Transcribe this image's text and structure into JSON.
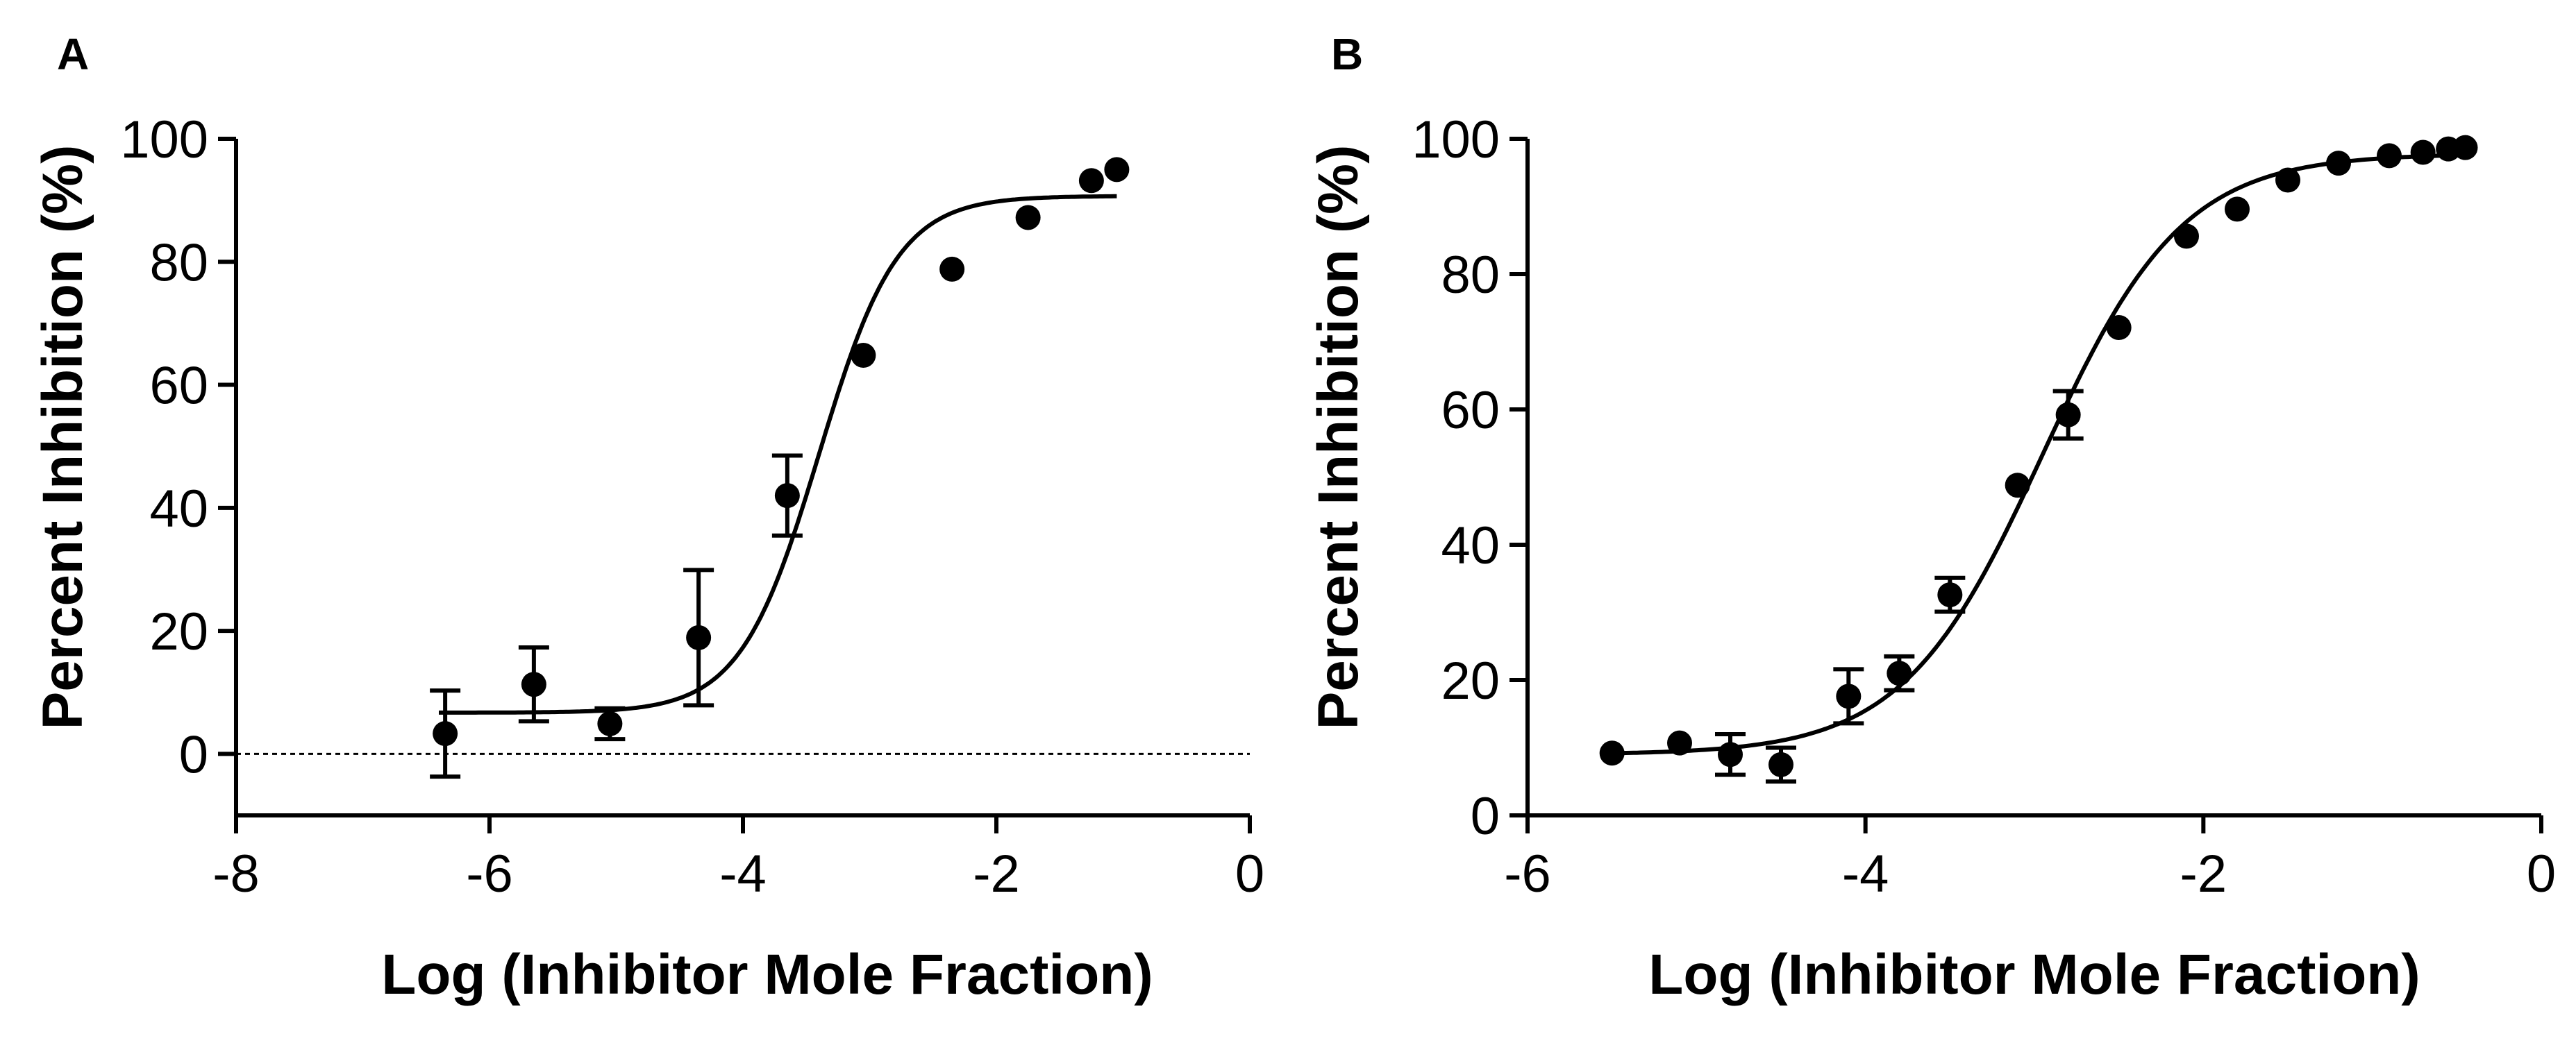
{
  "chart_data": [
    {
      "panel": "A",
      "type": "scatter",
      "xlabel": "Log (Inhibitor Mole Fraction)",
      "ylabel": "Percent Inhibition (%)",
      "xlim": [
        -8,
        0
      ],
      "ylim": [
        -10,
        100
      ],
      "xticks": [
        -8,
        -6,
        -4,
        -2,
        0
      ],
      "xtick_labels": [
        "-8",
        "-6",
        "-4",
        "-2",
        "0"
      ],
      "yticks": [
        0,
        20,
        40,
        60,
        80,
        100
      ],
      "ytick_labels": [
        "0",
        "20",
        "40",
        "60",
        "80",
        "100"
      ],
      "zero_line": true,
      "points": [
        {
          "x": -6.35,
          "y": 3.3,
          "err": 7.0
        },
        {
          "x": -5.65,
          "y": 11.3,
          "err": 6.0
        },
        {
          "x": -5.05,
          "y": 4.9,
          "err": 2.5
        },
        {
          "x": -4.35,
          "y": 18.9,
          "err": 11.0
        },
        {
          "x": -3.65,
          "y": 42.0,
          "err": 6.5
        },
        {
          "x": -3.05,
          "y": 64.8,
          "err": 0
        },
        {
          "x": -2.35,
          "y": 78.8,
          "err": 0
        },
        {
          "x": -1.75,
          "y": 87.2,
          "err": 0
        },
        {
          "x": -1.25,
          "y": 93.2,
          "err": 0
        },
        {
          "x": -1.05,
          "y": 95.0,
          "err": 0
        }
      ],
      "fit": {
        "model": "sigmoidal dose-response",
        "bottom": 6.7,
        "top": 90.7,
        "logIC50": -3.4,
        "hill": 1.4,
        "x_from": -6.4,
        "x_to": -1.05
      }
    },
    {
      "panel": "B",
      "type": "scatter",
      "xlabel": "Log (Inhibitor Mole Fraction)",
      "ylabel": "Percent Inhibition (%)",
      "xlim": [
        -6,
        0
      ],
      "ylim": [
        0,
        100
      ],
      "xticks": [
        -6,
        -4,
        -2,
        0
      ],
      "xtick_labels": [
        "-6",
        "-4",
        "-2",
        "0"
      ],
      "yticks": [
        0,
        20,
        40,
        60,
        80,
        100
      ],
      "ytick_labels": [
        "0",
        "20",
        "40",
        "60",
        "80",
        "100"
      ],
      "zero_line": false,
      "points": [
        {
          "x": -5.5,
          "y": 9.2,
          "err": 0
        },
        {
          "x": -5.1,
          "y": 10.7,
          "err": 0
        },
        {
          "x": -4.8,
          "y": 9.0,
          "err": 3.0
        },
        {
          "x": -4.5,
          "y": 7.5,
          "err": 2.5
        },
        {
          "x": -4.1,
          "y": 17.6,
          "err": 4.0
        },
        {
          "x": -3.8,
          "y": 21.0,
          "err": 2.5
        },
        {
          "x": -3.5,
          "y": 32.6,
          "err": 2.5
        },
        {
          "x": -3.1,
          "y": 48.8,
          "err": 0
        },
        {
          "x": -2.8,
          "y": 59.2,
          "err": 3.5
        },
        {
          "x": -2.5,
          "y": 72.1,
          "err": 0
        },
        {
          "x": -2.1,
          "y": 85.6,
          "err": 0
        },
        {
          "x": -1.8,
          "y": 89.6,
          "err": 0
        },
        {
          "x": -1.5,
          "y": 93.9,
          "err": 0
        },
        {
          "x": -1.2,
          "y": 96.4,
          "err": 0
        },
        {
          "x": -0.9,
          "y": 97.5,
          "err": 0
        },
        {
          "x": -0.7,
          "y": 98.0,
          "err": 0
        },
        {
          "x": -0.55,
          "y": 98.5,
          "err": 0
        },
        {
          "x": -0.45,
          "y": 98.7,
          "err": 0
        }
      ],
      "fit": {
        "model": "sigmoidal dose-response",
        "bottom": 9.0,
        "top": 97.8,
        "logIC50": -2.95,
        "hill": 1.05,
        "x_from": -5.5,
        "x_to": -0.45
      }
    }
  ]
}
